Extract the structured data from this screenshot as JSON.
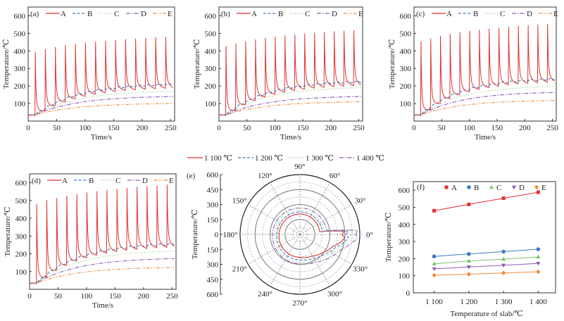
{
  "colors": {
    "A": "#e0312f",
    "B": "#3b7dc4",
    "C": "#7cc56a",
    "D": "#8e5bb5",
    "E": "#f08a3a"
  },
  "chart_data": [
    {
      "panel": "(a)",
      "type": "line",
      "xlabel": "Time/s",
      "ylabel": "Temperature/℃",
      "xlim": [
        0,
        257
      ],
      "ylim": [
        0,
        650
      ],
      "xticks": [
        0,
        50,
        100,
        150,
        200,
        250
      ],
      "yticks": [
        100,
        200,
        300,
        400,
        500,
        600
      ],
      "series_names": [
        "A",
        "B",
        "C",
        "D",
        "E"
      ],
      "A_peak_times": [
        12,
        29.6,
        47.2,
        64.8,
        82.4,
        100,
        117.6,
        135.2,
        152.8,
        170.4,
        188,
        205.6,
        223.2,
        240.8
      ],
      "A_peaks": [
        395,
        410,
        422,
        432,
        440,
        447,
        453,
        458,
        463,
        467,
        471,
        474,
        478,
        480
      ],
      "start_value": 35,
      "end_values": {
        "A": 200,
        "B": 210,
        "C": 170,
        "D": 140,
        "E": 100
      }
    },
    {
      "panel": "(b)",
      "type": "line",
      "xlabel": "Time/s",
      "ylabel": "Temperature/℃",
      "xlim": [
        0,
        257
      ],
      "ylim": [
        0,
        650
      ],
      "xticks": [
        0,
        50,
        100,
        150,
        200,
        250
      ],
      "yticks": [
        100,
        200,
        300,
        400,
        500,
        600
      ],
      "series_names": [
        "A",
        "B",
        "C",
        "D",
        "E"
      ],
      "A_peak_times": [
        12,
        29.6,
        47.2,
        64.8,
        82.4,
        100,
        117.6,
        135.2,
        152.8,
        170.4,
        188,
        205.6,
        223.2,
        240.8
      ],
      "A_peaks": [
        428,
        443,
        455,
        465,
        474,
        481,
        488,
        494,
        499,
        504,
        508,
        512,
        515,
        518
      ],
      "start_value": 35,
      "end_values": {
        "A": 215,
        "B": 225,
        "C": 190,
        "D": 140,
        "E": 110
      }
    },
    {
      "panel": "(c)",
      "type": "line",
      "xlabel": "Time/s",
      "ylabel": "Temperature/℃",
      "xlim": [
        0,
        257
      ],
      "ylim": [
        0,
        650
      ],
      "xticks": [
        0,
        50,
        100,
        150,
        200,
        250
      ],
      "yticks": [
        100,
        200,
        300,
        400,
        500,
        600
      ],
      "series_names": [
        "A",
        "B",
        "C",
        "D",
        "E"
      ],
      "A_peak_times": [
        12,
        29.6,
        47.2,
        64.8,
        82.4,
        100,
        117.6,
        135.2,
        152.8,
        170.4,
        188,
        205.6,
        223.2,
        240.8
      ],
      "A_peaks": [
        455,
        471,
        486,
        496,
        506,
        514,
        521,
        527,
        533,
        538,
        543,
        547,
        551,
        555
      ],
      "start_value": 35,
      "end_values": {
        "A": 235,
        "B": 240,
        "C": 198,
        "D": 163,
        "E": 117
      }
    },
    {
      "panel": "(d)",
      "type": "line",
      "xlabel": "Time/s",
      "ylabel": "Temperature/℃",
      "xlim": [
        0,
        257
      ],
      "ylim": [
        0,
        650
      ],
      "xticks": [
        0,
        50,
        100,
        150,
        200,
        250
      ],
      "yticks": [
        100,
        200,
        300,
        400,
        500,
        600
      ],
      "series_names": [
        "A",
        "B",
        "C",
        "D",
        "E"
      ],
      "A_peak_times": [
        12,
        29.6,
        47.2,
        64.8,
        82.4,
        100,
        117.6,
        135.2,
        152.8,
        170.4,
        188,
        205.6,
        223.2,
        240.8
      ],
      "A_peaks": [
        480,
        502,
        515,
        527,
        537,
        546,
        553,
        560,
        566,
        572,
        577,
        581,
        585,
        590
      ],
      "start_value": 35,
      "end_values": {
        "A": 250,
        "B": 255,
        "C": 215,
        "D": 173,
        "E": 123
      }
    },
    {
      "panel": "(e)",
      "type": "polar",
      "ylabel": "Temperature/℃",
      "rlim": [
        0,
        600
      ],
      "radial_tick_labels": [
        "600",
        "450",
        "300",
        "150",
        "0",
        "150",
        "300",
        "450",
        "600"
      ],
      "angle_labels": [
        "0°",
        "30°",
        "60°",
        "90°",
        "120°",
        "150°",
        "180°",
        "210°",
        "240°",
        "270°",
        "300°",
        "330°"
      ],
      "series": [
        {
          "name": "1 100 ℃",
          "points": [
            [
              0,
              420
            ],
            [
              4,
              450
            ],
            [
              8,
              200
            ],
            [
              30,
              200
            ],
            [
              90,
              205
            ],
            [
              150,
              205
            ],
            [
              180,
              210
            ],
            [
              240,
              225
            ],
            [
              270,
              230
            ],
            [
              300,
              250
            ],
            [
              320,
              290
            ],
            [
              340,
              350
            ],
            [
              350,
              420
            ],
            [
              356,
              450
            ],
            [
              360,
              420
            ]
          ]
        },
        {
          "name": "1 200 ℃",
          "points": [
            [
              0,
              460
            ],
            [
              4,
              490
            ],
            [
              8,
              225
            ],
            [
              30,
              225
            ],
            [
              90,
              225
            ],
            [
              150,
              228
            ],
            [
              180,
              235
            ],
            [
              240,
              250
            ],
            [
              270,
              255
            ],
            [
              300,
              275
            ],
            [
              320,
              315
            ],
            [
              340,
              380
            ],
            [
              350,
              450
            ],
            [
              356,
              490
            ],
            [
              360,
              460
            ]
          ]
        },
        {
          "name": "1 300 ℃",
          "points": [
            [
              0,
              500
            ],
            [
              4,
              530
            ],
            [
              8,
              245
            ],
            [
              30,
              245
            ],
            [
              90,
              245
            ],
            [
              150,
              250
            ],
            [
              180,
              255
            ],
            [
              240,
              270
            ],
            [
              270,
              275
            ],
            [
              300,
              295
            ],
            [
              320,
              340
            ],
            [
              340,
              410
            ],
            [
              350,
              480
            ],
            [
              356,
              530
            ],
            [
              360,
              500
            ]
          ]
        },
        {
          "name": "1 400 ℃",
          "points": [
            [
              0,
              560
            ],
            [
              4,
              575
            ],
            [
              8,
              270
            ],
            [
              30,
              268
            ],
            [
              90,
              265
            ],
            [
              150,
              270
            ],
            [
              180,
              275
            ],
            [
              240,
              290
            ],
            [
              270,
              295
            ],
            [
              300,
              320
            ],
            [
              320,
              370
            ],
            [
              340,
              440
            ],
            [
              350,
              520
            ],
            [
              356,
              575
            ],
            [
              360,
              560
            ]
          ]
        }
      ]
    },
    {
      "panel": "(f)",
      "type": "line",
      "xlabel": "Temperature of slab/℃",
      "ylabel": "Temperature/℃",
      "xlim": [
        1040,
        1450
      ],
      "ylim": [
        0,
        650
      ],
      "categories": [
        "1 100",
        "1 200",
        "1 300",
        "1 400"
      ],
      "x": [
        1100,
        1200,
        1300,
        1400
      ],
      "yticks": [
        0,
        100,
        200,
        300,
        400,
        500,
        600
      ],
      "series": [
        {
          "name": "A",
          "values": [
            480,
            517,
            553,
            588
          ]
        },
        {
          "name": "B",
          "values": [
            213,
            227,
            241,
            255
          ]
        },
        {
          "name": "C",
          "values": [
            170,
            186,
            197,
            210
          ]
        },
        {
          "name": "D",
          "values": [
            140,
            151,
            161,
            172
          ]
        },
        {
          "name": "E",
          "values": [
            103,
            109,
            116,
            123
          ]
        }
      ]
    }
  ]
}
